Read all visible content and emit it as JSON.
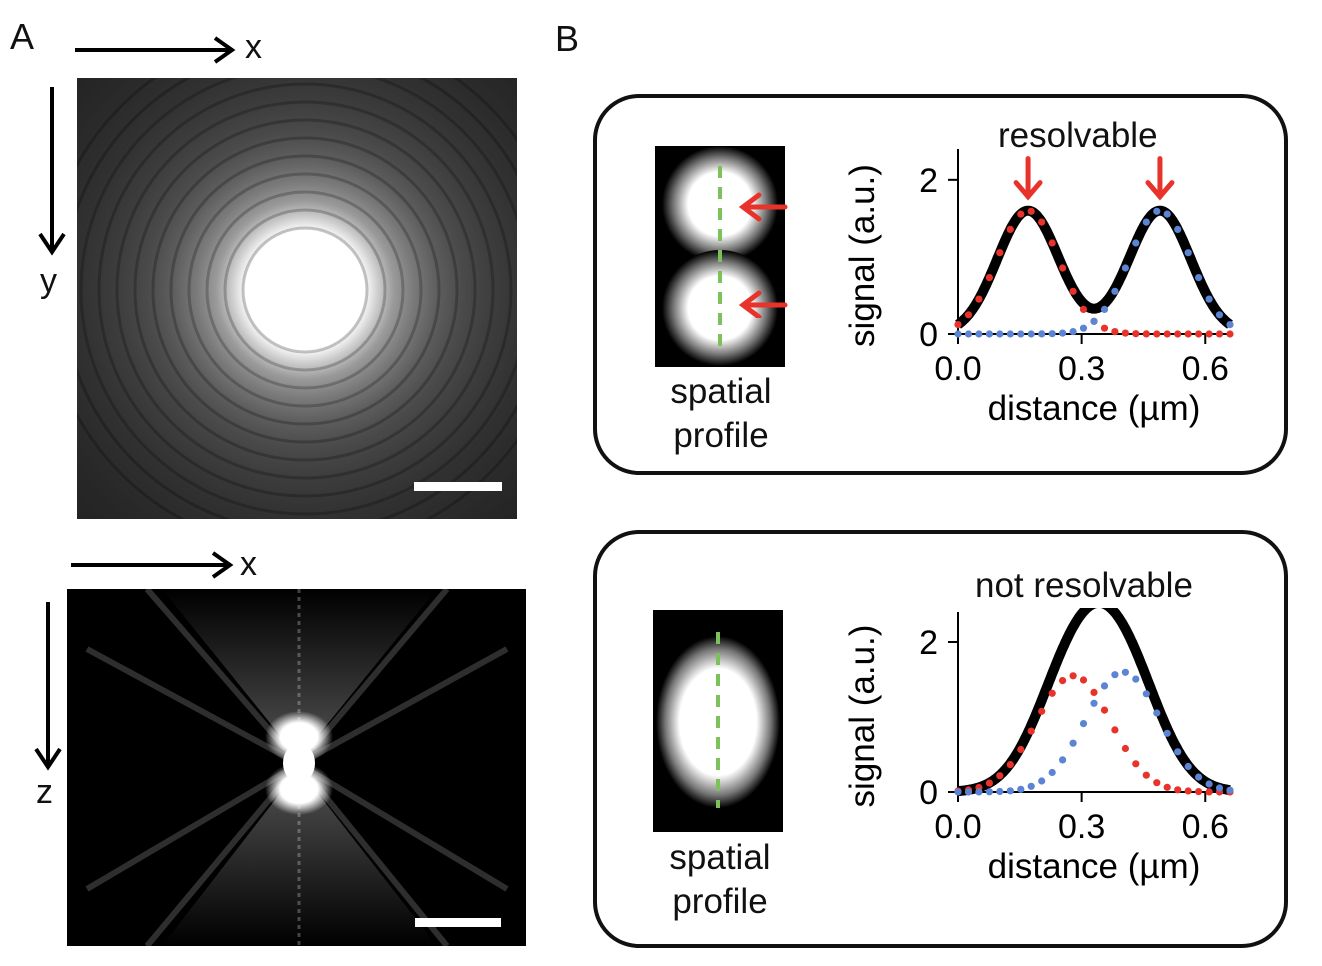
{
  "panels": {
    "a_label": "A",
    "b_label": "B"
  },
  "panel_a": {
    "top": {
      "x_axis_label": "x",
      "y_axis_label": "y"
    },
    "bottom": {
      "x_axis_label": "x",
      "y_axis_label": "z"
    }
  },
  "panel_b": {
    "top": {
      "title": "resolvable",
      "caption_line1": "spatial",
      "caption_line2": "profile"
    },
    "bottom": {
      "title": "not resolvable",
      "caption_line1": "spatial",
      "caption_line2": "profile"
    }
  },
  "colors": {
    "total": "#000000",
    "source1": "#e8332a",
    "source2": "#5b84d4",
    "scan_line": "#7cc15a",
    "arrow": "#e8332a"
  },
  "chart_data": [
    {
      "type": "line",
      "title": "resolvable",
      "xlabel": "distance (µm)",
      "ylabel": "signal (a.u.)",
      "xlim": [
        0.0,
        0.66
      ],
      "ylim": [
        0,
        2.4
      ],
      "xticks": [
        "0.0",
        "0.3",
        "0.6"
      ],
      "xtick_values": [
        0.0,
        0.3,
        0.6
      ],
      "yticks": [
        "0",
        "2"
      ],
      "ytick_values": [
        0,
        2
      ],
      "peaks": [
        0.17,
        0.49
      ],
      "series": [
        {
          "style": "dotted-red",
          "center": 0.17,
          "amplitude": 1.6,
          "sigma": 0.075
        },
        {
          "style": "dotted-blue",
          "center": 0.49,
          "amplitude": 1.6,
          "sigma": 0.075
        },
        {
          "style": "solid-black-sum"
        }
      ]
    },
    {
      "type": "line",
      "title": "not resolvable",
      "xlabel": "distance (µm)",
      "ylabel": "signal (a.u.)",
      "xlim": [
        0.0,
        0.66
      ],
      "ylim": [
        0,
        2.4
      ],
      "xticks": [
        "0.0",
        "0.3",
        "0.6"
      ],
      "xtick_values": [
        0.0,
        0.3,
        0.6
      ],
      "yticks": [
        "0",
        "2"
      ],
      "ytick_values": [
        0,
        2
      ],
      "series": [
        {
          "style": "dotted-red",
          "center": 0.28,
          "amplitude": 1.55,
          "sigma": 0.09
        },
        {
          "style": "dotted-blue",
          "center": 0.4,
          "amplitude": 1.6,
          "sigma": 0.09
        },
        {
          "style": "solid-black-sum"
        }
      ]
    }
  ]
}
